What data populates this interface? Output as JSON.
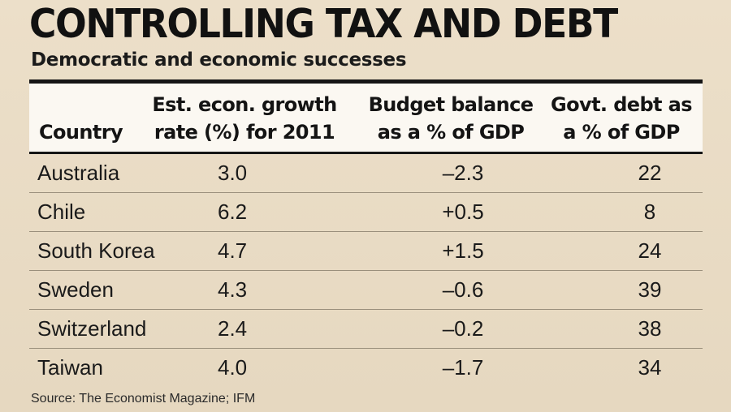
{
  "chart_data": {
    "type": "table",
    "title": "CONTROLLING TAX AND DEBT",
    "subtitle": "Democratic and economic successes",
    "columns": [
      {
        "key": "country",
        "line1": "",
        "line2": "Country"
      },
      {
        "key": "growth",
        "line1": "Est. econ. growth",
        "line2": "rate (%) for 2011"
      },
      {
        "key": "budget",
        "line1": "Budget balance",
        "line2": "as a % of GDP"
      },
      {
        "key": "debt",
        "line1": "Govt. debt as",
        "line2": "a % of GDP"
      }
    ],
    "rows": [
      {
        "country": "Australia",
        "growth": "3.0",
        "budget": "–2.3",
        "debt": "22"
      },
      {
        "country": "Chile",
        "growth": "6.2",
        "budget": "+0.5",
        "debt": "8"
      },
      {
        "country": "South Korea",
        "growth": "4.7",
        "budget": "+1.5",
        "debt": "24"
      },
      {
        "country": "Sweden",
        "growth": "4.3",
        "budget": "–0.6",
        "debt": "39"
      },
      {
        "country": "Switzerland",
        "growth": "2.4",
        "budget": "–0.2",
        "debt": "38"
      },
      {
        "country": "Taiwan",
        "growth": "4.0",
        "budget": "–1.7",
        "debt": "34"
      }
    ],
    "source": "Source: The Economist Magazine; IFM"
  }
}
